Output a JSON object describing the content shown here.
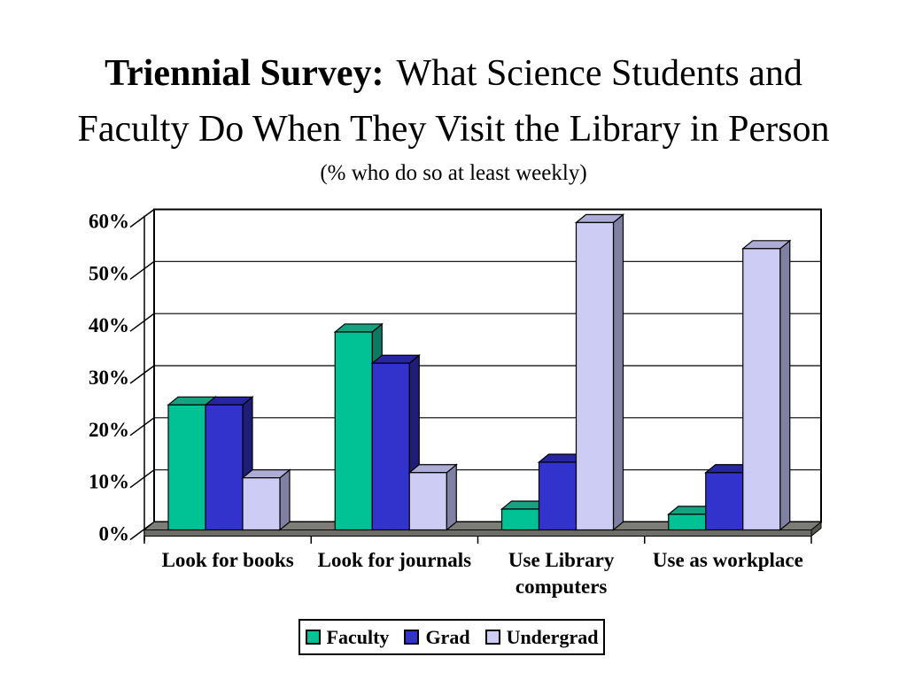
{
  "slide": {
    "title_bold": "Triennial Survey:",
    "title_line1_rest": "What Science Students and",
    "title_line2": "Faculty Do When They Visit the Library in Person",
    "subtitle": "(% who do so at least weekly)"
  },
  "chart_data": {
    "type": "bar",
    "projection": "3d-column",
    "categories": [
      "Look for books",
      "Look for journals",
      "Use Library computers",
      "Use as workplace"
    ],
    "series": [
      {
        "name": "Faculty",
        "values": [
          24,
          38,
          4,
          3
        ],
        "color": "#00C295",
        "top_color": "#16A181",
        "side_color": "#0C7A62"
      },
      {
        "name": "Grad",
        "values": [
          24,
          32,
          13,
          11
        ],
        "color": "#3232CC",
        "top_color": "#26269E",
        "side_color": "#1E1E78"
      },
      {
        "name": "Undergrad",
        "values": [
          10,
          11,
          59,
          54
        ],
        "color": "#CCCCF5",
        "top_color": "#ACACD6",
        "side_color": "#8080A4"
      }
    ],
    "xlabel": "",
    "ylabel": "",
    "ylim": [
      0,
      60
    ],
    "ytick_step": 10,
    "yticks": [
      "0%",
      "10%",
      "20%",
      "30%",
      "40%",
      "50%",
      "60%"
    ],
    "grid": true,
    "legend_position": "bottom",
    "wall_color": "#FFFFFF",
    "floor_color": "#7D7D78",
    "floor_front_color": "#6E6E68",
    "floor_end_color": "#55554F"
  }
}
